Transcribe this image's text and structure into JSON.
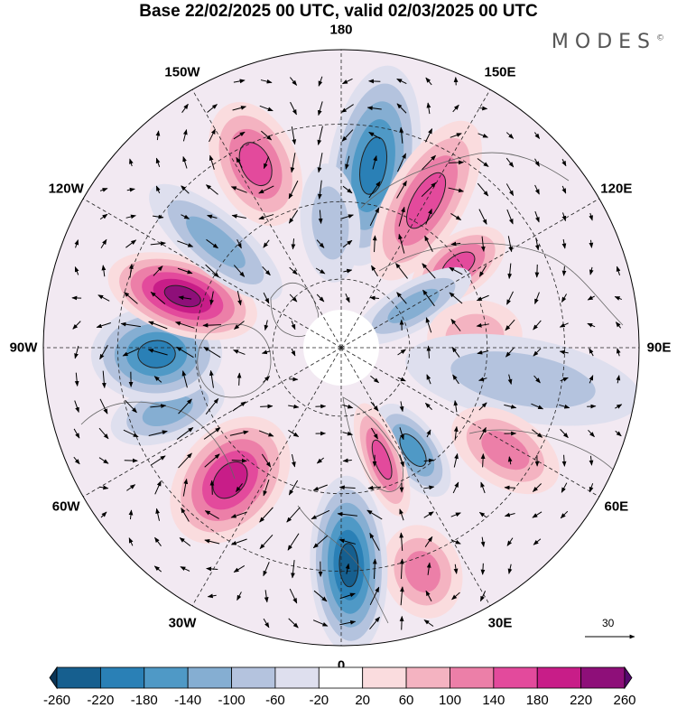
{
  "title": "Base 22/02/2025 00 UTC, valid 02/03/2025 00 UTC",
  "brand": {
    "text": "MODES",
    "mark": "©"
  },
  "longitude_labels": [
    {
      "text": "180",
      "angle": 0
    },
    {
      "text": "150E",
      "angle": 30
    },
    {
      "text": "120E",
      "angle": 60
    },
    {
      "text": "90E",
      "angle": 90
    },
    {
      "text": "60E",
      "angle": 120
    },
    {
      "text": "30E",
      "angle": 150
    },
    {
      "text": "0",
      "angle": 180
    },
    {
      "text": "30W",
      "angle": 210
    },
    {
      "text": "60W",
      "angle": 240
    },
    {
      "text": "90W",
      "angle": 270
    },
    {
      "text": "120W",
      "angle": 300
    },
    {
      "text": "150W",
      "angle": 330
    }
  ],
  "reference_vector": {
    "value": "30"
  },
  "colorbar": {
    "ticks": [
      "-260",
      "-220",
      "-180",
      "-140",
      "-100",
      "-60",
      "-20",
      "20",
      "60",
      "100",
      "140",
      "180",
      "220",
      "260"
    ],
    "colors": [
      "#0b3556",
      "#165f8f",
      "#2a80b6",
      "#4f99c6",
      "#85aed2",
      "#b4c3de",
      "#dedfee",
      "#ffffff",
      "#fadcde",
      "#f4b3c1",
      "#ec7fa8",
      "#e34a9c",
      "#c81d88",
      "#8e0f79",
      "#56096e"
    ]
  },
  "anomaly_cells": [
    {
      "lon": 170,
      "r": 0.62,
      "val": -190,
      "sx": 0.34,
      "sy": 0.15
    },
    {
      "lon": 150,
      "r": 0.57,
      "val": 170,
      "sx": 0.3,
      "sy": 0.13
    },
    {
      "lon": 125,
      "r": 0.48,
      "val": 150,
      "sx": 0.18,
      "sy": 0.1
    },
    {
      "lon": 120,
      "r": 0.28,
      "val": -110,
      "sx": 0.22,
      "sy": 0.08
    },
    {
      "lon": 95,
      "r": 0.45,
      "val": 70,
      "sx": 0.16,
      "sy": 0.12
    },
    {
      "lon": 80,
      "r": 0.62,
      "val": -60,
      "sx": 0.4,
      "sy": 0.14
    },
    {
      "lon": 58,
      "r": 0.65,
      "val": 110,
      "sx": 0.2,
      "sy": 0.12
    },
    {
      "lon": 35,
      "r": 0.42,
      "val": -150,
      "sx": 0.18,
      "sy": 0.09
    },
    {
      "lon": 20,
      "r": 0.4,
      "val": 150,
      "sx": 0.2,
      "sy": 0.07
    },
    {
      "lon": 20,
      "r": 0.8,
      "val": 110,
      "sx": 0.16,
      "sy": 0.13
    },
    {
      "lon": 2,
      "r": 0.73,
      "val": -220,
      "sx": 0.3,
      "sy": 0.13
    },
    {
      "lon": -40,
      "r": 0.58,
      "val": 200,
      "sx": 0.24,
      "sy": 0.17
    },
    {
      "lon": -70,
      "r": 0.62,
      "val": -100,
      "sx": 0.2,
      "sy": 0.1
    },
    {
      "lon": -88,
      "r": 0.62,
      "val": -200,
      "sx": 0.22,
      "sy": 0.16
    },
    {
      "lon": -108,
      "r": 0.56,
      "val": 250,
      "sx": 0.26,
      "sy": 0.13
    },
    {
      "lon": -130,
      "r": 0.55,
      "val": -100,
      "sx": 0.28,
      "sy": 0.1
    },
    {
      "lon": -155,
      "r": 0.68,
      "val": 160,
      "sx": 0.22,
      "sy": 0.14
    },
    {
      "lon": -175,
      "r": 0.42,
      "val": -60,
      "sx": 0.2,
      "sy": 0.1
    }
  ]
}
